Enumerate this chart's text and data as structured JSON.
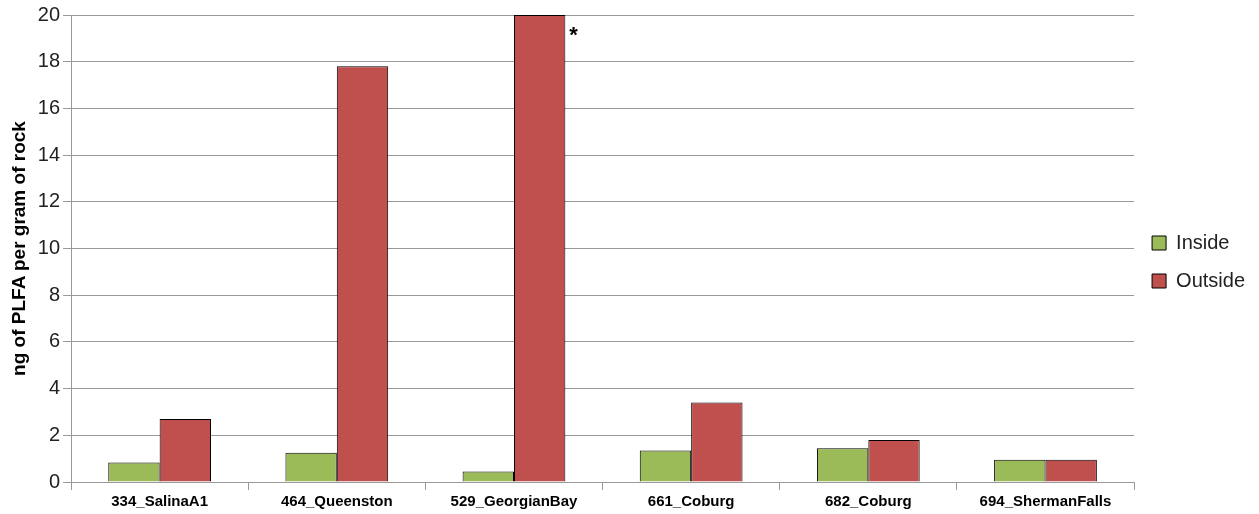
{
  "chart_data": {
    "type": "bar",
    "ylabel": "ng of PLFA per gram of rock",
    "categories": [
      "334_SalinaA1",
      "464_Queenston",
      "529_GeorgianBay",
      "661_Coburg",
      "682_Coburg",
      "694_ShermanFalls"
    ],
    "series": [
      {
        "name": "Inside",
        "color": "#9bbb59",
        "values": [
          0.83,
          1.25,
          0.45,
          1.35,
          1.45,
          0.95
        ]
      },
      {
        "name": "Outside",
        "color": "#c0504d",
        "values": [
          2.7,
          17.8,
          20,
          3.4,
          1.8,
          0.95
        ]
      }
    ],
    "ylim": [
      0,
      20
    ],
    "yticks": [
      0,
      2,
      4,
      6,
      8,
      10,
      12,
      14,
      16,
      18,
      20
    ],
    "grid": "y",
    "legend": "right",
    "annotations": [
      {
        "text": "*",
        "x": "529_GeorgianBay",
        "y": 20
      }
    ]
  }
}
